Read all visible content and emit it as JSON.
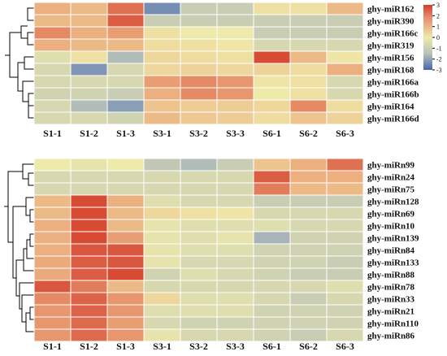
{
  "chart_data": [
    {
      "type": "heatmap",
      "columns": [
        "S1-1",
        "S1-2",
        "S1-3",
        "S3-1",
        "S3-2",
        "S3-3",
        "S6-1",
        "S6-2",
        "S6-3"
      ],
      "rows": [
        "ghy-miR162",
        "ghy-miR390",
        "ghy-miR166c",
        "ghy-miR319",
        "ghy-miR156",
        "ghy-miR168",
        "ghy-miR166a",
        "ghy-miR166b",
        "ghy-miR164",
        "ghy-miR166d"
      ],
      "values": [
        [
          1.2,
          1.0,
          2.2,
          -2.0,
          -0.5,
          -0.5,
          0.2,
          0.2,
          1.0
        ],
        [
          1.0,
          1.0,
          2.5,
          -0.5,
          -0.5,
          -0.5,
          -0.5,
          -0.5,
          -0.5
        ],
        [
          1.8,
          1.2,
          1.5,
          0.2,
          0.0,
          0.0,
          -0.5,
          -0.5,
          -0.5
        ],
        [
          1.2,
          1.0,
          1.0,
          0.3,
          0.2,
          0.1,
          -0.3,
          -0.3,
          -0.3
        ],
        [
          -0.2,
          0.2,
          -0.8,
          0.4,
          0.3,
          0.2,
          2.8,
          1.0,
          0.1
        ],
        [
          -0.3,
          -1.8,
          -0.3,
          0.4,
          0.5,
          0.4,
          0.5,
          0.3,
          1.2
        ],
        [
          -0.3,
          -0.3,
          -0.3,
          1.5,
          1.8,
          1.6,
          0.1,
          0.2,
          -0.3
        ],
        [
          -0.4,
          -0.4,
          -0.5,
          1.2,
          1.8,
          1.6,
          0.0,
          0.2,
          -0.3
        ],
        [
          -0.3,
          -0.8,
          -1.6,
          0.8,
          0.6,
          0.6,
          0.4,
          1.8,
          0.3
        ],
        [
          -0.3,
          -0.3,
          -0.4,
          1.0,
          0.7,
          0.6,
          0.3,
          0.8,
          0.5
        ]
      ],
      "legend": {
        "ticks": [
          3,
          2,
          1,
          0,
          -1,
          -2,
          -3
        ],
        "vmin": -3,
        "vmax": 3,
        "placement": "top-right"
      }
    },
    {
      "type": "heatmap",
      "columns": [
        "S1-1",
        "S1-2",
        "S1-3",
        "S3-1",
        "S3-2",
        "S3-3",
        "S6-1",
        "S6-2",
        "S6-3"
      ],
      "rows": [
        "ghy-miRn99",
        "ghy-miRn24",
        "ghy-miRn75",
        "ghy-miRn128",
        "ghy-miRn69",
        "ghy-miRn10",
        "ghy-miRn139",
        "ghy-miRn84",
        "ghy-miRn133",
        "ghy-miRn88",
        "ghy-miRn78",
        "ghy-miRn33",
        "ghy-miRn21",
        "ghy-miRn110",
        "ghy-miRn86"
      ],
      "values": [
        [
          0.0,
          -0.1,
          0.0,
          -0.6,
          -0.8,
          -0.5,
          0.8,
          1.2,
          2.2
        ],
        [
          -0.3,
          -0.3,
          -0.3,
          -0.3,
          -0.3,
          -0.3,
          2.5,
          1.2,
          1.2
        ],
        [
          -0.3,
          -0.3,
          -0.3,
          -0.3,
          -0.3,
          -0.3,
          2.0,
          1.0,
          1.0
        ],
        [
          1.0,
          2.8,
          1.2,
          -0.2,
          -0.3,
          -0.3,
          -0.5,
          -0.5,
          -0.5
        ],
        [
          1.0,
          2.8,
          1.0,
          0.4,
          0.2,
          0.1,
          -0.3,
          -0.3,
          -0.3
        ],
        [
          1.2,
          2.8,
          1.0,
          -0.1,
          -0.2,
          -0.2,
          -0.2,
          -0.3,
          -0.3
        ],
        [
          1.2,
          2.8,
          1.5,
          -0.1,
          -0.2,
          -0.1,
          -1.0,
          -0.4,
          -0.4
        ],
        [
          1.2,
          2.6,
          2.6,
          -0.1,
          -0.2,
          -0.2,
          -0.4,
          -0.4,
          -0.4
        ],
        [
          1.3,
          2.5,
          2.6,
          -0.1,
          -0.3,
          -0.3,
          -0.4,
          -0.4,
          -0.5
        ],
        [
          1.3,
          2.5,
          2.8,
          -0.4,
          -0.2,
          -0.3,
          -0.4,
          -0.5,
          -0.5
        ],
        [
          2.6,
          2.0,
          1.0,
          -0.3,
          -0.3,
          -0.3,
          -0.3,
          -0.3,
          -0.2
        ],
        [
          1.8,
          2.4,
          1.6,
          0.4,
          -0.2,
          -0.2,
          -0.3,
          -0.5,
          -0.3
        ],
        [
          1.6,
          2.4,
          1.6,
          -0.2,
          -0.2,
          -0.2,
          -0.4,
          -0.4,
          -0.4
        ],
        [
          1.6,
          2.3,
          1.5,
          -0.3,
          -0.4,
          -0.4,
          -0.4,
          -0.4,
          -0.4
        ],
        [
          1.6,
          2.3,
          1.6,
          -0.1,
          -0.3,
          -0.3,
          -0.4,
          -0.5,
          -0.3
        ]
      ]
    }
  ],
  "colors": {
    "low": "#4468b0",
    "mid": "#eeeaaa",
    "high": "#d43d2b",
    "cell_border": "#ffffff",
    "dendrogram": "#000000"
  }
}
